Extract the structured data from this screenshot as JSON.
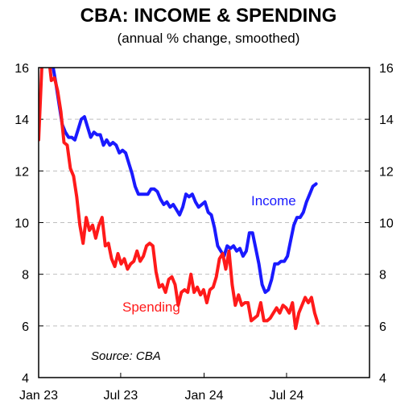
{
  "chart_data": {
    "type": "line",
    "title": "CBA: INCOME & SPENDING",
    "subtitle": "(annual % change, smoothed)",
    "xlabel": "",
    "ylabel": "",
    "ylim": [
      4,
      16
    ],
    "yticks": [
      4,
      6,
      8,
      10,
      12,
      14,
      16
    ],
    "xlim": [
      "2023-01-01",
      "2024-12-31"
    ],
    "xticks": [
      {
        "date": "2023-01-01",
        "label": "Jan 23"
      },
      {
        "date": "2023-07-01",
        "label": "Jul 23"
      },
      {
        "date": "2024-01-01",
        "label": "Jan 24"
      },
      {
        "date": "2024-07-01",
        "label": "Jul 24"
      }
    ],
    "grid": "horizontal dashed",
    "source": "Source: CBA",
    "series": [
      {
        "name": "Income",
        "color": "#1a1aff",
        "points": [
          [
            "2023-02-01",
            16.1
          ],
          [
            "2023-02-08",
            15.4
          ],
          [
            "2023-02-15",
            14.6
          ],
          [
            "2023-02-22",
            13.8
          ],
          [
            "2023-03-01",
            13.5
          ],
          [
            "2023-03-08",
            13.3
          ],
          [
            "2023-03-15",
            13.3
          ],
          [
            "2023-03-22",
            13.2
          ],
          [
            "2023-03-29",
            13.6
          ],
          [
            "2023-04-05",
            14.0
          ],
          [
            "2023-04-12",
            14.1
          ],
          [
            "2023-04-19",
            13.7
          ],
          [
            "2023-04-26",
            13.3
          ],
          [
            "2023-05-03",
            13.5
          ],
          [
            "2023-05-10",
            13.4
          ],
          [
            "2023-05-17",
            13.4
          ],
          [
            "2023-05-24",
            13.0
          ],
          [
            "2023-05-31",
            13.2
          ],
          [
            "2023-06-07",
            13.0
          ],
          [
            "2023-06-14",
            13.1
          ],
          [
            "2023-06-21",
            13.0
          ],
          [
            "2023-06-28",
            12.7
          ],
          [
            "2023-07-05",
            12.8
          ],
          [
            "2023-07-12",
            12.7
          ],
          [
            "2023-07-19",
            12.3
          ],
          [
            "2023-07-26",
            11.9
          ],
          [
            "2023-08-02",
            11.4
          ],
          [
            "2023-08-09",
            11.1
          ],
          [
            "2023-08-16",
            11.1
          ],
          [
            "2023-08-23",
            11.1
          ],
          [
            "2023-08-30",
            11.1
          ],
          [
            "2023-09-06",
            11.3
          ],
          [
            "2023-09-13",
            11.3
          ],
          [
            "2023-09-20",
            11.2
          ],
          [
            "2023-09-27",
            10.9
          ],
          [
            "2023-10-04",
            10.7
          ],
          [
            "2023-10-11",
            10.8
          ],
          [
            "2023-10-18",
            10.6
          ],
          [
            "2023-10-25",
            10.7
          ],
          [
            "2023-11-01",
            10.5
          ],
          [
            "2023-11-08",
            10.3
          ],
          [
            "2023-11-15",
            10.6
          ],
          [
            "2023-11-22",
            11.1
          ],
          [
            "2023-11-29",
            11.0
          ],
          [
            "2023-12-06",
            11.1
          ],
          [
            "2023-12-13",
            10.8
          ],
          [
            "2023-12-20",
            10.6
          ],
          [
            "2023-12-27",
            10.7
          ],
          [
            "2024-01-03",
            10.8
          ],
          [
            "2024-01-10",
            10.4
          ],
          [
            "2024-01-17",
            10.3
          ],
          [
            "2024-01-24",
            9.8
          ],
          [
            "2024-01-31",
            9.1
          ],
          [
            "2024-02-07",
            8.9
          ],
          [
            "2024-02-14",
            8.7
          ],
          [
            "2024-02-21",
            9.1
          ],
          [
            "2024-02-28",
            9.0
          ],
          [
            "2024-03-06",
            9.1
          ],
          [
            "2024-03-13",
            8.9
          ],
          [
            "2024-03-20",
            9.0
          ],
          [
            "2024-03-27",
            8.7
          ],
          [
            "2024-04-03",
            8.9
          ],
          [
            "2024-04-10",
            9.6
          ],
          [
            "2024-04-17",
            9.6
          ],
          [
            "2024-04-24",
            9.0
          ],
          [
            "2024-05-01",
            8.4
          ],
          [
            "2024-05-08",
            7.6
          ],
          [
            "2024-05-15",
            7.3
          ],
          [
            "2024-05-22",
            7.4
          ],
          [
            "2024-05-29",
            7.8
          ],
          [
            "2024-06-05",
            8.4
          ],
          [
            "2024-06-12",
            8.4
          ],
          [
            "2024-06-19",
            8.5
          ],
          [
            "2024-06-26",
            8.5
          ],
          [
            "2024-07-03",
            8.7
          ],
          [
            "2024-07-10",
            9.3
          ],
          [
            "2024-07-17",
            9.9
          ],
          [
            "2024-07-24",
            10.2
          ],
          [
            "2024-07-31",
            10.2
          ],
          [
            "2024-08-07",
            10.4
          ],
          [
            "2024-08-14",
            10.8
          ],
          [
            "2024-08-21",
            11.1
          ],
          [
            "2024-08-28",
            11.4
          ],
          [
            "2024-09-04",
            11.5
          ]
        ]
      },
      {
        "name": "Spending",
        "color": "#ff1a1a",
        "points": [
          [
            "2023-01-01",
            13.2
          ],
          [
            "2023-01-08",
            16.0
          ],
          [
            "2023-01-15",
            17.6
          ],
          [
            "2023-01-22",
            16.6
          ],
          [
            "2023-01-29",
            15.5
          ],
          [
            "2023-02-05",
            15.6
          ],
          [
            "2023-02-12",
            15.1
          ],
          [
            "2023-02-19",
            14.3
          ],
          [
            "2023-02-26",
            13.1
          ],
          [
            "2023-03-05",
            13.0
          ],
          [
            "2023-03-12",
            12.1
          ],
          [
            "2023-03-19",
            11.8
          ],
          [
            "2023-03-26",
            11.0
          ],
          [
            "2023-04-02",
            9.9
          ],
          [
            "2023-04-09",
            9.2
          ],
          [
            "2023-04-16",
            10.2
          ],
          [
            "2023-04-23",
            9.7
          ],
          [
            "2023-04-30",
            9.9
          ],
          [
            "2023-05-07",
            9.4
          ],
          [
            "2023-05-14",
            9.9
          ],
          [
            "2023-05-21",
            10.2
          ],
          [
            "2023-05-28",
            9.1
          ],
          [
            "2023-06-04",
            9.2
          ],
          [
            "2023-06-11",
            8.6
          ],
          [
            "2023-06-18",
            8.3
          ],
          [
            "2023-06-25",
            8.8
          ],
          [
            "2023-07-02",
            8.4
          ],
          [
            "2023-07-09",
            8.6
          ],
          [
            "2023-07-16",
            8.2
          ],
          [
            "2023-07-23",
            8.4
          ],
          [
            "2023-07-30",
            8.5
          ],
          [
            "2023-08-06",
            8.9
          ],
          [
            "2023-08-13",
            8.5
          ],
          [
            "2023-08-20",
            8.7
          ],
          [
            "2023-08-27",
            9.1
          ],
          [
            "2023-09-03",
            9.2
          ],
          [
            "2023-09-10",
            9.1
          ],
          [
            "2023-09-17",
            8.1
          ],
          [
            "2023-09-24",
            7.5
          ],
          [
            "2023-10-01",
            7.6
          ],
          [
            "2023-10-08",
            7.3
          ],
          [
            "2023-10-15",
            7.8
          ],
          [
            "2023-10-22",
            7.9
          ],
          [
            "2023-10-29",
            7.6
          ],
          [
            "2023-11-05",
            6.8
          ],
          [
            "2023-11-12",
            7.3
          ],
          [
            "2023-11-19",
            7.4
          ],
          [
            "2023-11-26",
            7.3
          ],
          [
            "2023-12-03",
            8.0
          ],
          [
            "2023-12-10",
            7.3
          ],
          [
            "2023-12-17",
            7.5
          ],
          [
            "2023-12-24",
            7.2
          ],
          [
            "2023-12-31",
            7.4
          ],
          [
            "2024-01-07",
            6.9
          ],
          [
            "2024-01-14",
            7.4
          ],
          [
            "2024-01-21",
            7.5
          ],
          [
            "2024-01-28",
            7.9
          ],
          [
            "2024-02-04",
            8.6
          ],
          [
            "2024-02-11",
            8.8
          ],
          [
            "2024-02-18",
            8.2
          ],
          [
            "2024-02-25",
            8.9
          ],
          [
            "2024-03-03",
            7.6
          ],
          [
            "2024-03-10",
            6.8
          ],
          [
            "2024-03-17",
            7.2
          ],
          [
            "2024-03-24",
            6.8
          ],
          [
            "2024-03-31",
            6.9
          ],
          [
            "2024-04-07",
            6.9
          ],
          [
            "2024-04-14",
            6.2
          ],
          [
            "2024-04-21",
            6.3
          ],
          [
            "2024-04-28",
            6.4
          ],
          [
            "2024-05-05",
            6.9
          ],
          [
            "2024-05-12",
            6.2
          ],
          [
            "2024-05-19",
            6.2
          ],
          [
            "2024-05-26",
            6.3
          ],
          [
            "2024-06-02",
            6.5
          ],
          [
            "2024-06-09",
            6.7
          ],
          [
            "2024-06-16",
            6.5
          ],
          [
            "2024-06-23",
            6.8
          ],
          [
            "2024-06-30",
            6.7
          ],
          [
            "2024-07-07",
            6.5
          ],
          [
            "2024-07-14",
            6.9
          ],
          [
            "2024-07-21",
            5.9
          ],
          [
            "2024-07-28",
            6.5
          ],
          [
            "2024-08-04",
            6.8
          ],
          [
            "2024-08-11",
            7.1
          ],
          [
            "2024-08-18",
            6.9
          ],
          [
            "2024-08-25",
            7.1
          ],
          [
            "2024-09-01",
            6.5
          ],
          [
            "2024-09-08",
            6.1
          ]
        ]
      }
    ],
    "annotations": [
      {
        "text": "Income",
        "series": "Income"
      },
      {
        "text": "Spending",
        "series": "Spending"
      }
    ]
  }
}
